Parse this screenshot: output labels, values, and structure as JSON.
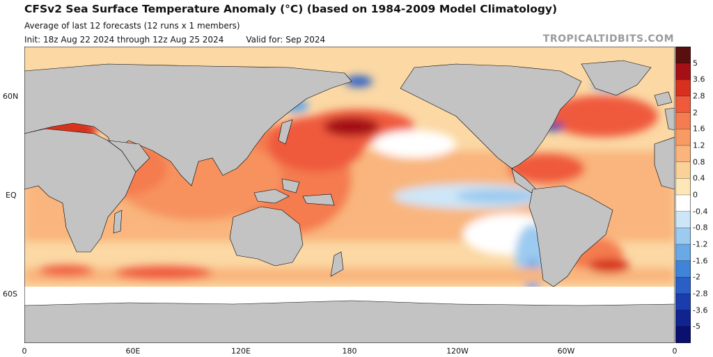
{
  "header": {
    "title": "CFSv2 Sea Surface Temperature Anomaly (°C) (based on 1984-2009 Model Climatology)",
    "subtitle": "Average of last 12 forecasts (12 runs x 1 members)",
    "init": "Init: 18z Aug 22 2024 through 12z Aug 25 2024",
    "valid": "Valid for: Sep 2024"
  },
  "watermark": "TROPICALTIDBITS.COM",
  "axes": {
    "lat_labels": [
      "60N",
      "EQ",
      "60S"
    ],
    "lon_labels": [
      "0",
      "60E",
      "120E",
      "180",
      "120W",
      "60W",
      "0"
    ]
  },
  "colorbar": {
    "labels": [
      "5",
      "3.6",
      "2.8",
      "2",
      "1.6",
      "1.2",
      "0.8",
      "0.4",
      "0",
      "-0.4",
      "-0.8",
      "-1.2",
      "-1.6",
      "-2",
      "-2.8",
      "-3.6",
      "-5"
    ],
    "colors": [
      "#5a0f0f",
      "#a50f15",
      "#d7301f",
      "#ef5a3c",
      "#f47c50",
      "#f79a63",
      "#f9b57d",
      "#fbd19a",
      "#fde7b8",
      "#ffffff",
      "#cde6f7",
      "#9ccaf0",
      "#6aa8e6",
      "#3f84d8",
      "#2a60c6",
      "#1b3cac",
      "#10238f",
      "#0a1070"
    ]
  },
  "land_color": "#c3c3c3"
}
